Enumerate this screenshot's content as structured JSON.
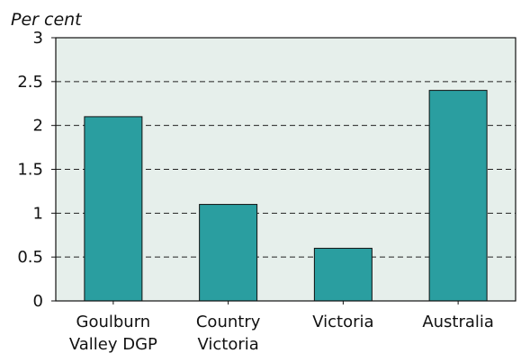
{
  "chart_data": {
    "type": "bar",
    "title": "",
    "xlabel": "",
    "ylabel": "Per cent",
    "ylim": [
      0,
      3
    ],
    "yticks": [
      "0",
      "0.5",
      "1",
      "1.5",
      "2",
      "2.5",
      "3"
    ],
    "grid": true,
    "categories": [
      [
        "Goulburn",
        "Valley DGP"
      ],
      [
        "Country",
        "Victoria"
      ],
      [
        "Victoria"
      ],
      [
        "Australia"
      ]
    ],
    "values": [
      2.1,
      1.1,
      0.6,
      2.4
    ],
    "colors": {
      "bar": "#2a9ea0",
      "plot_background": "#e6efeb",
      "gridline": "#222222"
    }
  }
}
